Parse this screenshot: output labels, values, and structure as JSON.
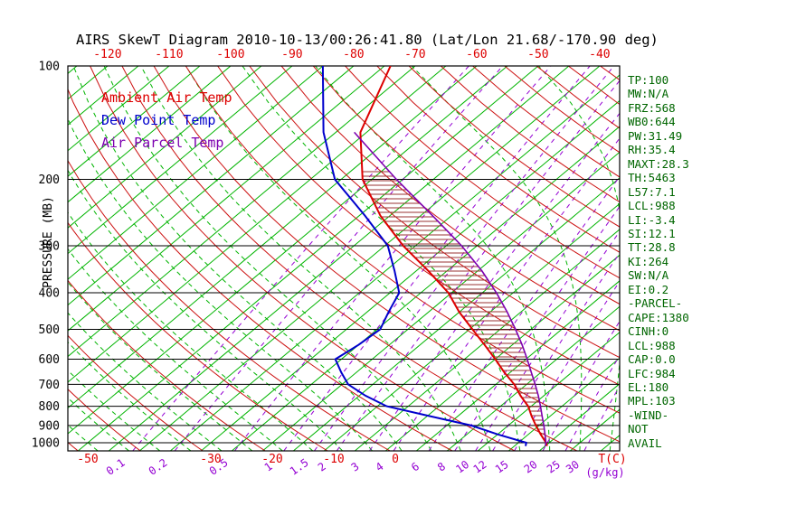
{
  "title": "AIRS SkewT Diagram 2010-10-13/00:26:41.80 (Lat/Lon 21.68/-170.90 deg)",
  "legend": [
    {
      "label": "Ambient Air Temp",
      "color": "#dd0000"
    },
    {
      "label": "Dew Point Temp",
      "color": "#0000cc"
    },
    {
      "label": "Air Parcel Temp",
      "color": "#7d00b0"
    }
  ],
  "stats_panel": [
    "TP:100",
    "MW:N/A",
    "FRZ:568",
    "WB0:644",
    "PW:31.49",
    "RH:35.4",
    "MAXT:28.3",
    "TH:5463",
    "L57:7.1",
    "LCL:988",
    "LI:-3.4",
    "SI:12.1",
    "TT:28.8",
    "KI:264",
    "SW:N/A",
    "EI:0.2",
    "-PARCEL-",
    "CAPE:1380",
    "CINH:0",
    "LCL:988",
    "CAP:0.0",
    "LFC:984",
    "EL:180",
    "MPL:103",
    "-WIND-",
    "NOT",
    "AVAIL"
  ],
  "colors": {
    "frame": "#000000",
    "pressure_labels": "#000000",
    "temp_labels": "#dd0000",
    "mixing_labels": "#9400d3",
    "stats_text": "#006600",
    "title": "#000000"
  },
  "chart_data": {
    "type": "line",
    "variant": "skew-t-log-p",
    "title": "AIRS SkewT Diagram 2010-10-13/00:26:41.80 (Lat/Lon 21.68/-170.90 deg)",
    "pressure_axis": {
      "label": "PRESSURE (MB)",
      "ticks": [
        100,
        200,
        300,
        400,
        500,
        600,
        700,
        800,
        900,
        1000
      ],
      "range": [
        100,
        1050
      ],
      "scale": "log"
    },
    "temp_axis_top_ticks": [
      -120,
      -110,
      -100,
      -90,
      -80,
      -70,
      -60,
      -50,
      -40
    ],
    "temp_axis_bottom": {
      "label": "T(C)",
      "ticks": [
        -50,
        -30,
        -20,
        -10,
        0
      ]
    },
    "mixing_ratio_axis": {
      "label": "(g/kg)",
      "ticks": [
        0.1,
        0.2,
        0.5,
        1,
        1.5,
        2,
        3,
        4,
        6,
        8,
        10,
        12,
        15,
        20,
        25,
        30
      ]
    },
    "background": {
      "isotherms": {
        "min": -160,
        "max": 45,
        "step": 5,
        "color": "#00b400"
      },
      "moist_adiabats": {
        "t1000_min": -60,
        "t1000_max": 35,
        "step": 5,
        "color": "#00b400"
      },
      "dry_adiabats": {
        "theta_k_min": 220,
        "theta_k_max": 460,
        "step": 10,
        "color": "#cc1111"
      },
      "mixing_ratio_lines": {
        "color": "#9400d3"
      }
    },
    "series": [
      {
        "name": "Ambient Air Temp",
        "id": "ambient-temp-line",
        "color": "#dd0000",
        "width": 2,
        "points": [
          [
            1020,
            25.3
          ],
          [
            1000,
            24.5
          ],
          [
            950,
            22.0
          ],
          [
            900,
            19.5
          ],
          [
            850,
            17.0
          ],
          [
            800,
            14.5
          ],
          [
            750,
            11.2
          ],
          [
            700,
            8.0
          ],
          [
            650,
            4.0
          ],
          [
            600,
            0.0
          ],
          [
            550,
            -4.5
          ],
          [
            500,
            -9.5
          ],
          [
            450,
            -15.0
          ],
          [
            400,
            -20.5
          ],
          [
            350,
            -28.0
          ],
          [
            300,
            -37.0
          ],
          [
            250,
            -46.5
          ],
          [
            200,
            -56.5
          ],
          [
            150,
            -66.0
          ],
          [
            100,
            -74.0
          ]
        ]
      },
      {
        "name": "Dew Point Temp",
        "id": "dew-point-line",
        "color": "#0000cc",
        "width": 2,
        "points": [
          [
            1020,
            21.8
          ],
          [
            1000,
            21.3
          ],
          [
            950,
            15.0
          ],
          [
            900,
            9.0
          ],
          [
            850,
            0.5
          ],
          [
            800,
            -8.5
          ],
          [
            750,
            -14.0
          ],
          [
            700,
            -19.0
          ],
          [
            650,
            -22.5
          ],
          [
            600,
            -26.0
          ],
          [
            550,
            -25.0
          ],
          [
            500,
            -24.5
          ],
          [
            450,
            -26.5
          ],
          [
            400,
            -28.5
          ],
          [
            350,
            -33.5
          ],
          [
            300,
            -39.5
          ],
          [
            250,
            -49.0
          ],
          [
            200,
            -61.0
          ],
          [
            150,
            -72.0
          ],
          [
            100,
            -85.0
          ]
        ]
      },
      {
        "name": "Air Parcel Temp",
        "id": "parcel-temp-line",
        "color": "#7d00b0",
        "width": 1.6,
        "points": [
          [
            1020,
            25.0
          ],
          [
            1000,
            24.5
          ],
          [
            950,
            22.7
          ],
          [
            900,
            20.8
          ],
          [
            850,
            18.7
          ],
          [
            800,
            16.5
          ],
          [
            750,
            14.1
          ],
          [
            700,
            11.4
          ],
          [
            650,
            8.4
          ],
          [
            600,
            5.2
          ],
          [
            550,
            1.6
          ],
          [
            500,
            -2.5
          ],
          [
            450,
            -7.2
          ],
          [
            400,
            -12.7
          ],
          [
            350,
            -19.3
          ],
          [
            300,
            -27.5
          ],
          [
            250,
            -38.0
          ],
          [
            200,
            -51.0
          ],
          [
            150,
            -67.0
          ]
        ]
      }
    ],
    "cape_hatch": {
      "color": "#993333",
      "from_hpa": 1000,
      "to_hpa": 190
    }
  }
}
